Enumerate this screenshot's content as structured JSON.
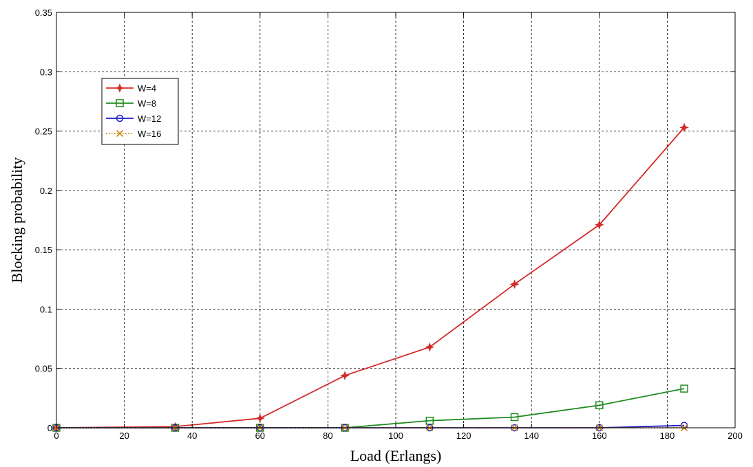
{
  "chart_data": {
    "type": "line",
    "xlabel": "Load (Erlangs)",
    "ylabel": "Blocking probability",
    "xlim": [
      0,
      200
    ],
    "ylim": [
      0,
      0.35
    ],
    "xticks": [
      0,
      20,
      40,
      60,
      80,
      100,
      120,
      140,
      160,
      180,
      200
    ],
    "yticks": [
      0,
      0.05,
      0.1,
      0.15,
      0.2,
      0.25,
      0.3,
      0.35
    ],
    "xtick_labels": [
      "0",
      "20",
      "40",
      "60",
      "80",
      "100",
      "120",
      "140",
      "160",
      "180",
      "200"
    ],
    "ytick_labels": [
      "0",
      "0.05",
      "0.1",
      "0.15",
      "0.2",
      "0.25",
      "0.3",
      "0.35"
    ],
    "grid": true,
    "legend_position": "upper-left",
    "x": [
      0,
      35,
      60,
      85,
      110,
      135,
      160,
      185
    ],
    "series": [
      {
        "name": "W=4",
        "color": "#d42a2a",
        "marker": "star",
        "dash": "solid",
        "values": [
          0,
          0.001,
          0.008,
          0.044,
          0.068,
          0.121,
          0.171,
          0.253
        ]
      },
      {
        "name": "W=8",
        "color": "#1f8a1f",
        "marker": "square",
        "dash": "solid",
        "values": [
          0,
          0,
          0,
          0,
          0.006,
          0.009,
          0.019,
          0.033
        ]
      },
      {
        "name": "W=12",
        "color": "#1a1acc",
        "marker": "circle",
        "dash": "solid",
        "values": [
          0,
          0,
          0,
          0,
          0,
          0,
          0,
          0.002
        ]
      },
      {
        "name": "W=16",
        "color": "#d08a1a",
        "marker": "x",
        "dash": "dotted",
        "values": [
          0,
          0,
          0,
          0,
          0,
          0,
          0,
          0
        ]
      }
    ]
  }
}
